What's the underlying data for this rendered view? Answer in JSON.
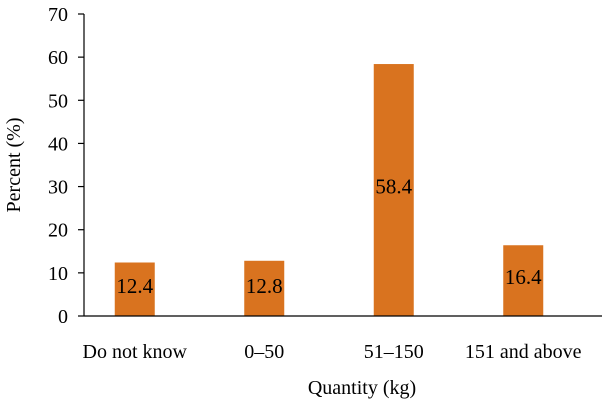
{
  "chart_data": {
    "type": "bar",
    "title": "",
    "xlabel": "Quantity (kg)",
    "ylabel": "Percent (%)",
    "categories": [
      "Do not know",
      "0–50",
      "51–150",
      "151 and above"
    ],
    "values": [
      12.4,
      12.8,
      58.4,
      16.4
    ],
    "data_labels": [
      "12.4",
      "12.8",
      "58.4",
      "16.4"
    ],
    "ylim": [
      0,
      70
    ],
    "yticks": [
      0,
      10,
      20,
      30,
      40,
      50,
      60,
      70
    ],
    "bar_color": "#D9731F",
    "grid": false,
    "legend": "none"
  }
}
